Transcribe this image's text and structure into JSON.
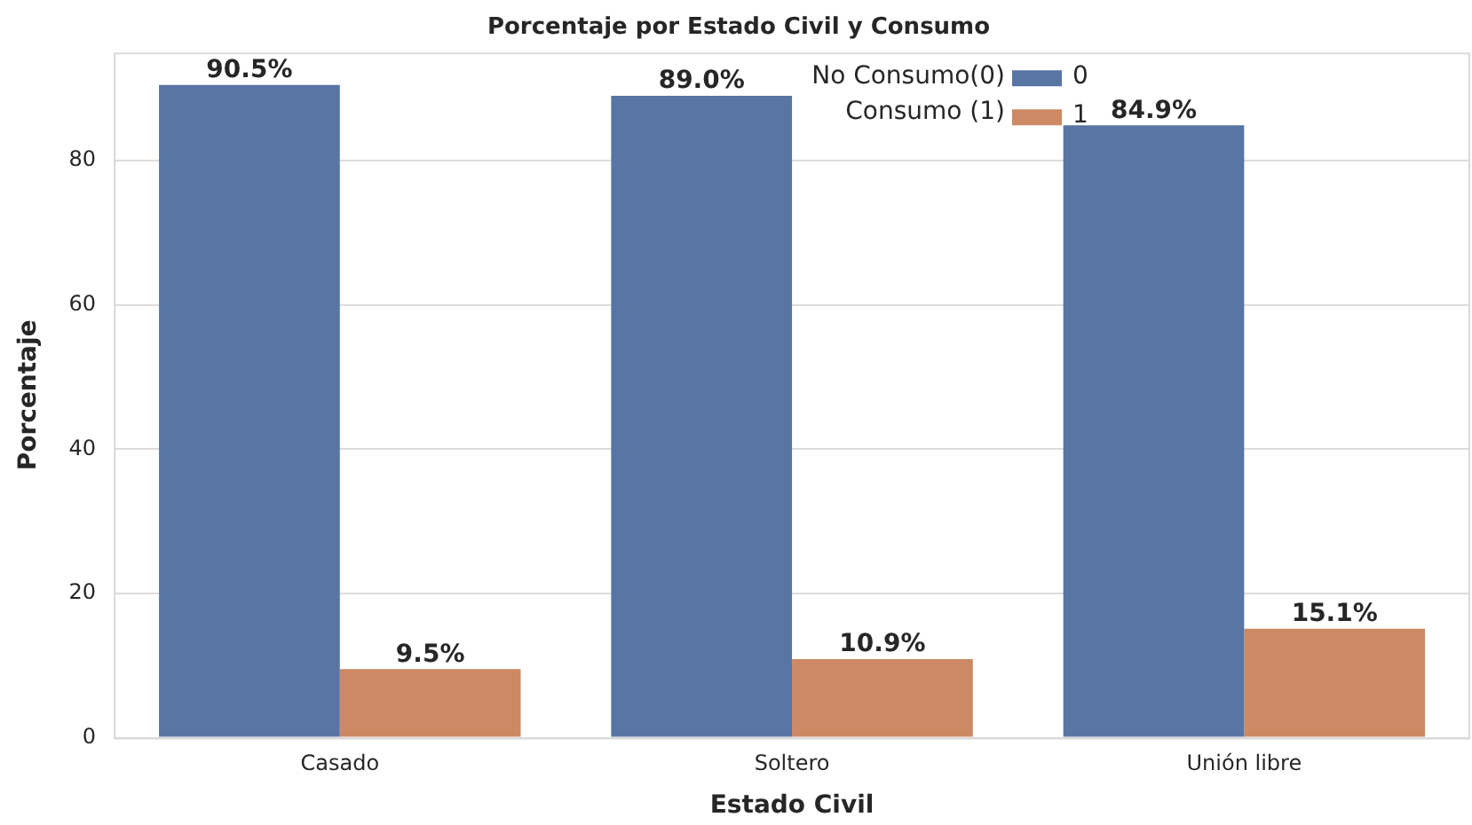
{
  "chart_data": {
    "type": "bar",
    "title": "Porcentaje por Estado Civil y Consumo",
    "xlabel": "Estado Civil",
    "ylabel": "Porcentaje",
    "categories": [
      "Casado",
      "Soltero",
      "Unión libre"
    ],
    "series": [
      {
        "name": "0",
        "color": "#5875a4",
        "values": [
          90.5,
          89.0,
          84.9
        ],
        "value_labels": [
          "90.5%",
          "89.0%",
          "84.9%"
        ]
      },
      {
        "name": "1",
        "color": "#cc8963",
        "values": [
          9.5,
          10.9,
          15.1
        ],
        "value_labels": [
          "9.5%",
          "10.9%",
          "15.1%"
        ]
      }
    ],
    "annotations": [
      "No Consumo(0)",
      "Consumo (1)"
    ],
    "ylim": [
      0,
      95
    ],
    "yticks": [
      0,
      20,
      40,
      60,
      80
    ],
    "grid": "y",
    "legend": "top right"
  }
}
